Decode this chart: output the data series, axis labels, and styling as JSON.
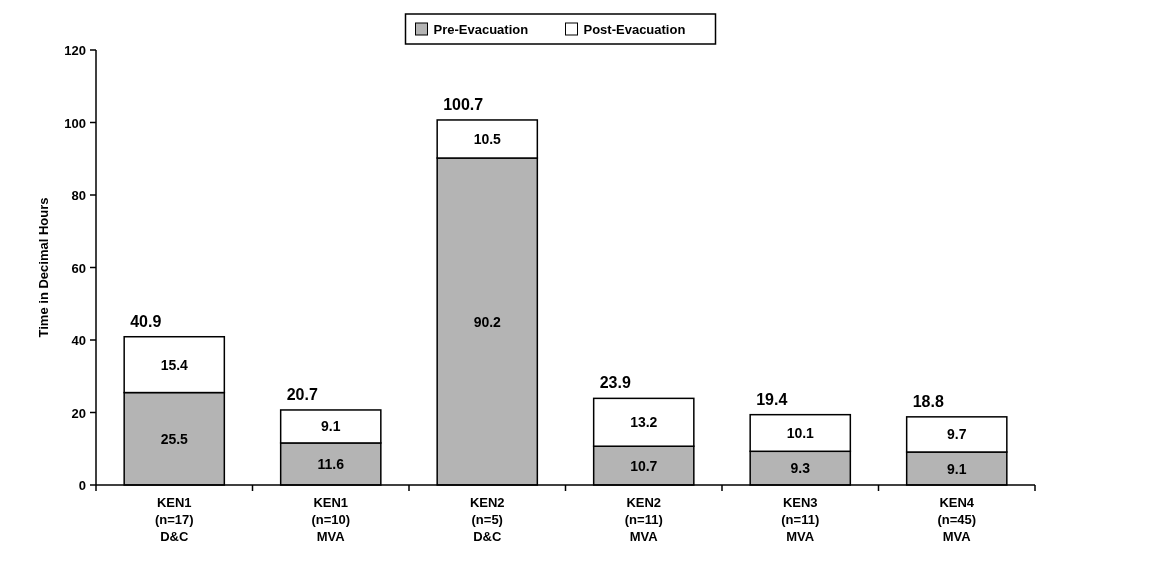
{
  "chart_data": {
    "type": "bar",
    "stacked": true,
    "ylabel": "Time in Decimal Hours",
    "categories": [
      "KEN1\n(n=17)\nD&C",
      "KEN1\n(n=10)\nMVA",
      "KEN2\n(n=5)\nD&C",
      "KEN2\n(n=11)\nMVA",
      "KEN3\n(n=11)\nMVA",
      "KEN4\n(n=45)\nMVA"
    ],
    "series": [
      {
        "name": "Pre-Evacuation",
        "color": "#b4b4b4",
        "values": [
          25.5,
          11.6,
          90.2,
          10.7,
          9.3,
          9.1
        ]
      },
      {
        "name": "Post-Evacuation",
        "color": "#ffffff",
        "values": [
          15.4,
          9.1,
          10.5,
          13.2,
          10.1,
          9.7
        ]
      }
    ],
    "totals": [
      "40.9",
      "20.7",
      "100.7",
      "23.9",
      "19.4",
      "18.8"
    ],
    "ylim": [
      0,
      120
    ],
    "yticks": [
      0,
      20,
      40,
      60,
      80,
      100,
      120
    ],
    "data_labels": true,
    "grid": false,
    "legend": "top"
  }
}
